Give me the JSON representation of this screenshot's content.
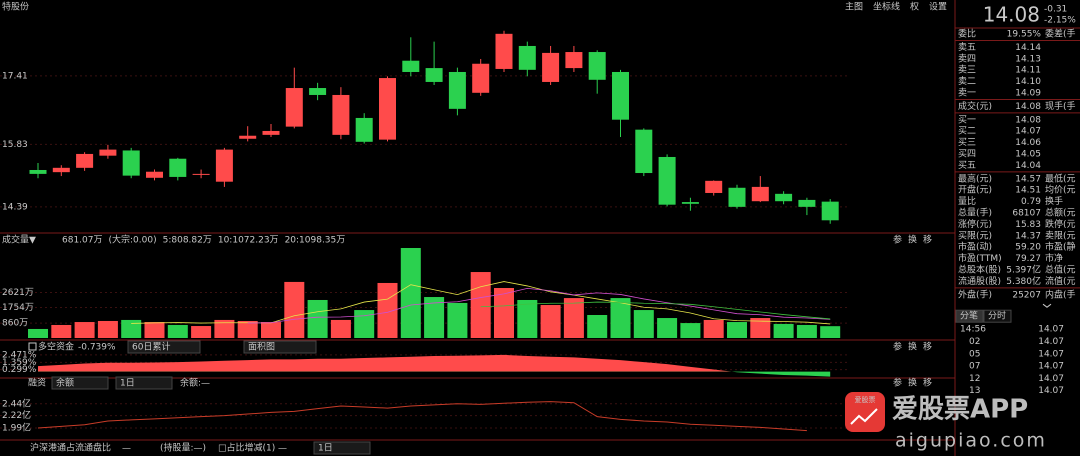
{
  "header": {
    "stock": "特股份",
    "tools": [
      "主图",
      "坐标线",
      "权",
      "设置"
    ]
  },
  "panel_tools": [
    "参",
    "换",
    "移"
  ],
  "chart_data": [
    {
      "type": "candlestick",
      "up_color": "#ff4b4b",
      "down_color": "#2bd14f",
      "open": [
        15.24,
        15.19,
        15.29,
        15.57,
        15.69,
        15.06,
        15.5,
        15.13,
        14.97,
        15.96,
        16.05,
        16.24,
        17.13,
        16.05,
        16.44,
        15.94,
        17.76,
        17.59,
        17.5,
        17.02,
        17.57,
        18.1,
        17.27,
        17.59,
        17.96,
        17.5,
        16.17,
        15.54,
        14.5,
        14.71,
        14.83,
        14.52,
        14.69,
        14.55,
        14.51
      ],
      "high": [
        15.4,
        15.35,
        15.65,
        15.82,
        15.75,
        15.25,
        15.52,
        15.25,
        15.75,
        16.25,
        16.3,
        17.6,
        17.25,
        17.15,
        16.55,
        17.4,
        18.3,
        18.2,
        17.6,
        17.8,
        18.45,
        18.2,
        18.1,
        18.1,
        18.0,
        17.55,
        16.2,
        15.6,
        14.6,
        15.0,
        14.9,
        15.1,
        14.75,
        14.6,
        14.57
      ],
      "low": [
        15.05,
        15.1,
        15.22,
        15.5,
        15.05,
        15.0,
        15.0,
        15.05,
        14.85,
        15.9,
        16.0,
        16.2,
        16.85,
        15.95,
        15.85,
        15.9,
        17.4,
        17.2,
        16.5,
        16.95,
        17.5,
        17.4,
        17.2,
        17.5,
        17.0,
        16.0,
        15.1,
        14.4,
        14.3,
        14.65,
        14.35,
        14.5,
        14.45,
        14.2,
        14.0
      ],
      "close": [
        15.15,
        15.29,
        15.61,
        15.71,
        15.11,
        15.2,
        15.08,
        15.15,
        15.71,
        16.03,
        16.14,
        17.13,
        16.97,
        16.97,
        15.89,
        17.36,
        17.5,
        17.27,
        16.65,
        17.69,
        18.38,
        17.55,
        17.94,
        17.96,
        17.32,
        16.4,
        15.17,
        14.44,
        14.46,
        14.99,
        14.39,
        14.85,
        14.52,
        14.39,
        14.08
      ],
      "ylim": [
        13.81,
        19.16
      ],
      "yticks": [
        14.39,
        15.83,
        17.41
      ],
      "grid": true
    },
    {
      "type": "bar",
      "title": "成交量▼",
      "annotations": [
        "681.07万",
        "(大宗:0.00)"
      ],
      "values": [
        520,
        750,
        920,
        980,
        1040,
        920,
        750,
        690,
        1040,
        980,
        920,
        3230,
        2190,
        1040,
        1610,
        3170,
        5185,
        2360,
        2020,
        3800,
        2880,
        2190,
        1900,
        2300,
        1325,
        2300,
        1610,
        1150,
        860,
        1040,
        920,
        1150,
        810,
        750,
        681.07
      ],
      "series": [
        {
          "name": "5:808.82万",
          "color": "#e6e64a",
          "values": [
            null,
            null,
            null,
            null,
            840,
            870,
            890,
            860,
            880,
            880,
            870,
            1280,
            1510,
            1680,
            2070,
            2240,
            3070,
            2780,
            2500,
            2950,
            3250,
            3000,
            2660,
            2470,
            2250,
            2030,
            1770,
            1680,
            1440,
            1110,
            1000,
            970,
            950,
            910,
            808.82
          ]
        },
        {
          "name": "10:1072.23万",
          "color": "#d050d0",
          "values": [
            null,
            null,
            null,
            null,
            null,
            null,
            null,
            null,
            null,
            860,
            880,
            1080,
            1200,
            1210,
            1280,
            1480,
            1900,
            2020,
            2090,
            2330,
            2540,
            2860,
            2720,
            2480,
            2600,
            2510,
            2250,
            2030,
            1840,
            1620,
            1400,
            1340,
            1200,
            1150,
            1072.23
          ]
        },
        {
          "name": "20:1098.35万",
          "color": "#40c040",
          "values": [
            null,
            null,
            null,
            null,
            null,
            null,
            null,
            null,
            null,
            null,
            null,
            null,
            null,
            null,
            null,
            null,
            null,
            null,
            null,
            1800,
            1850,
            1950,
            2000,
            2010,
            2070,
            2050,
            2000,
            1980,
            1940,
            1800,
            1650,
            1500,
            1350,
            1220,
            1098.35
          ]
        }
      ],
      "ylim": [
        0,
        5300
      ],
      "yticks": [
        {
          "value": 860,
          "label": "860万"
        },
        {
          "value": 1754,
          "label": "1754万"
        },
        {
          "value": 2621,
          "label": "2621万"
        }
      ]
    },
    {
      "type": "area",
      "title": "多空资金",
      "annotations": [
        "-0.739%"
      ],
      "controls": [
        "60日累计",
        "面积图"
      ],
      "up_color": "#ff4b4b",
      "down_color": "#2bd14f",
      "values": [
        0.8,
        1.0,
        1.2,
        1.3,
        1.3,
        1.35,
        1.4,
        1.5,
        1.6,
        1.7,
        1.8,
        1.8,
        1.9,
        1.9,
        2.0,
        2.1,
        2.2,
        2.3,
        2.35,
        2.4,
        2.471,
        2.3,
        2.2,
        2.1,
        1.9,
        1.7,
        1.4,
        1.1,
        0.7,
        0.3,
        -0.1,
        -0.3,
        -0.5,
        -0.6,
        -0.739
      ],
      "ylim": [
        -0.8,
        2.6
      ],
      "yticks": [
        {
          "value": 0.299,
          "label": "0.299%"
        },
        {
          "value": 1.359,
          "label": "1.359%"
        },
        {
          "value": 2.471,
          "label": "2.471%"
        }
      ]
    },
    {
      "type": "line",
      "title": "融资",
      "controls": [
        "余额",
        "1日"
      ],
      "annotations": [
        "余额:—"
      ],
      "color": "#c83c28",
      "values": [
        1.99,
        2.02,
        2.05,
        2.12,
        2.14,
        2.16,
        2.18,
        2.2,
        2.22,
        2.25,
        2.28,
        2.3,
        2.35,
        2.4,
        2.38,
        2.36,
        2.4,
        2.42,
        2.44,
        2.43,
        2.45,
        2.47,
        2.48,
        2.46,
        2.2,
        2.15,
        2.12,
        2.1,
        2.06,
        2.04,
        2.02,
        2.0,
        1.97,
        1.94,
        null
      ],
      "ylim": [
        1.84,
        2.66
      ],
      "yticks": [
        {
          "value": 1.99,
          "label": "1.99亿"
        },
        {
          "value": 2.22,
          "label": "2.22亿"
        },
        {
          "value": 2.44,
          "label": "2.44亿"
        }
      ]
    }
  ],
  "footer": {
    "items": [
      "沪深港通占流通盘比",
      "—",
      "(持股量:—)",
      "□占比增减(1)",
      "—",
      "1日"
    ]
  },
  "quote": {
    "price": "14.08",
    "change": "-0.31",
    "change_pct": "-2.15%",
    "rows": [
      {
        "label": "委比",
        "value": "19.55%",
        "extra": "委差(手",
        "color": "#ff4b4b"
      },
      {
        "label": "卖五",
        "value": "14.14",
        "color": "#2bd14f"
      },
      {
        "label": "卖四",
        "value": "14.13",
        "color": "#2bd14f"
      },
      {
        "label": "卖三",
        "value": "14.11",
        "color": "#2bd14f"
      },
      {
        "label": "卖二",
        "value": "14.10",
        "color": "#2bd14f"
      },
      {
        "label": "卖一",
        "value": "14.09",
        "color": "#2bd14f"
      },
      {
        "label": "成交(元)",
        "value": "14.08",
        "extra": "现手(手",
        "color": "#2bd14f"
      },
      {
        "label": "买一",
        "value": "14.08",
        "color": "#2bd14f"
      },
      {
        "label": "买二",
        "value": "14.07",
        "color": "#2bd14f"
      },
      {
        "label": "买三",
        "value": "14.06",
        "color": "#2bd14f"
      },
      {
        "label": "买四",
        "value": "14.05",
        "color": "#2bd14f"
      },
      {
        "label": "买五",
        "value": "14.04",
        "color": "#2bd14f"
      },
      {
        "label": "最高(元)",
        "value": "14.57",
        "extra": "最低(元",
        "color": "#ff4b4b"
      },
      {
        "label": "开盘(元)",
        "value": "14.51",
        "extra": "均价(元",
        "color": "#ff4b4b"
      },
      {
        "label": "量比",
        "value": "0.79",
        "extra": "换手",
        "color": "#e0e0e0"
      },
      {
        "label": "总量(手)",
        "value": "68107",
        "extra": "总额(元",
        "color": "#e0e0e0"
      },
      {
        "label": "涨停(元)",
        "value": "15.83",
        "extra": "跌停(元",
        "color": "#ff4b4b"
      },
      {
        "label": "买限(元)",
        "value": "14.37",
        "extra": "卖限(元",
        "color": "#ff4b4b"
      },
      {
        "label": "市盈(动)",
        "value": "59.20",
        "extra": "市盈(静",
        "color": "#ff4b4b"
      },
      {
        "label": "市盈(TTM)",
        "value": "79.27",
        "extra": "市净",
        "color": "#ff4b4b"
      },
      {
        "label": "总股本(股)",
        "value": "5.397亿",
        "extra": "总值(元",
        "color": "#ff4b4b"
      },
      {
        "label": "流通股(股)",
        "value": "5.380亿",
        "extra": "流值(元",
        "color": "#ff4b4b"
      },
      {
        "label": "外盘(手)",
        "value": "25207",
        "extra": "内盘(手",
        "color": "#ff4b4b"
      }
    ],
    "tabs": [
      "分笔",
      "分时"
    ],
    "ticks": [
      [
        "14:56",
        "14.07"
      ],
      [
        "02",
        "14.07"
      ],
      [
        "05",
        "14.07"
      ],
      [
        "07",
        "14.07"
      ],
      [
        "12",
        "14.07"
      ],
      [
        "13",
        "14.07"
      ]
    ]
  },
  "watermark": {
    "logo": "爱股票",
    "brand": "爱股票APP",
    "url": "aigupiao.com"
  }
}
